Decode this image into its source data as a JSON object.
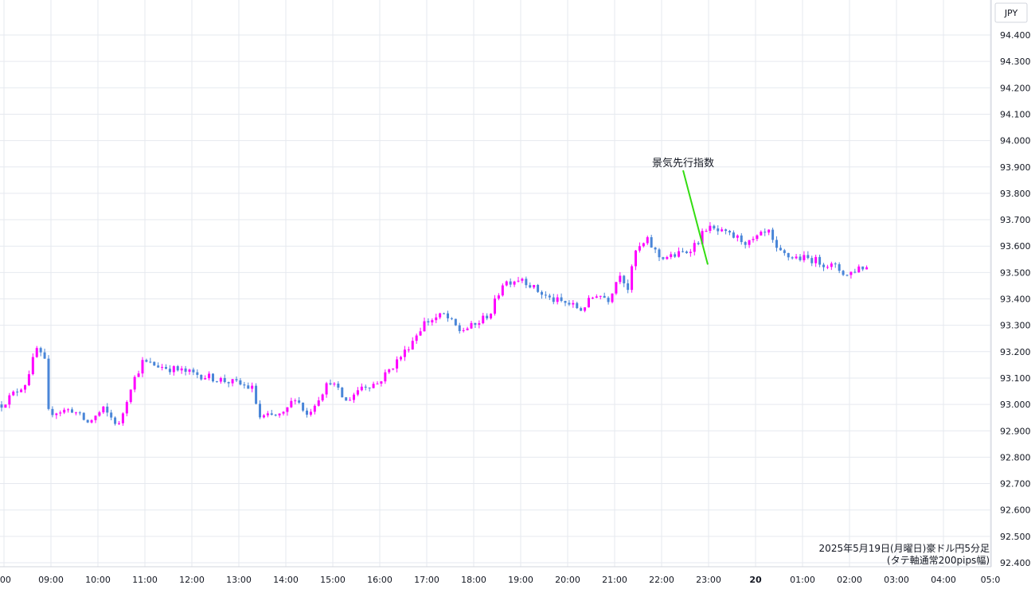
{
  "chart_data": {
    "type": "candlestick",
    "interval": "5分足",
    "currency": "JPY",
    "ylim": [
      92.4,
      94.5
    ],
    "y_ticks": [
      "94.400",
      "94.300",
      "94.200",
      "94.100",
      "94.000",
      "93.900",
      "93.800",
      "93.700",
      "93.600",
      "93.500",
      "93.400",
      "93.300",
      "93.200",
      "93.100",
      "93.000",
      "92.900",
      "92.800",
      "92.700",
      "92.600",
      "92.500",
      "92.400"
    ],
    "x_ticks": [
      {
        "label": ":00",
        "bold": false
      },
      {
        "label": "09:00",
        "bold": false
      },
      {
        "label": "10:00",
        "bold": false
      },
      {
        "label": "11:00",
        "bold": false
      },
      {
        "label": "12:00",
        "bold": false
      },
      {
        "label": "13:00",
        "bold": false
      },
      {
        "label": "14:00",
        "bold": false
      },
      {
        "label": "15:00",
        "bold": false
      },
      {
        "label": "16:00",
        "bold": false
      },
      {
        "label": "17:00",
        "bold": false
      },
      {
        "label": "18:00",
        "bold": false
      },
      {
        "label": "19:00",
        "bold": false
      },
      {
        "label": "20:00",
        "bold": false
      },
      {
        "label": "21:00",
        "bold": false
      },
      {
        "label": "22:00",
        "bold": false
      },
      {
        "label": "23:00",
        "bold": false
      },
      {
        "label": "20",
        "bold": true
      },
      {
        "label": "01:00",
        "bold": false
      },
      {
        "label": "02:00",
        "bold": false
      },
      {
        "label": "03:00",
        "bold": false
      },
      {
        "label": "04:00",
        "bold": false
      },
      {
        "label": "05:0",
        "bold": false
      }
    ],
    "up_color": "#ff00ff",
    "down_color": "#4a86d8",
    "annotation": {
      "text": "景気先行指数",
      "line_color": "#33dd11",
      "price": 93.53
    },
    "caption_lines": [
      "2025年5月19日(月曜日)豪ドル円5分足",
      "(タテ軸通常200pips幅)"
    ],
    "waypoints": [
      [
        0,
        93.0
      ],
      [
        6,
        93.08
      ],
      [
        9,
        93.21
      ],
      [
        11,
        93.16
      ],
      [
        12,
        92.97
      ],
      [
        18,
        92.98
      ],
      [
        22,
        92.93
      ],
      [
        26,
        92.98
      ],
      [
        30,
        92.92
      ],
      [
        31,
        92.97
      ],
      [
        33,
        93.07
      ],
      [
        36,
        93.16
      ],
      [
        42,
        93.14
      ],
      [
        48,
        93.12
      ],
      [
        54,
        93.1
      ],
      [
        60,
        93.08
      ],
      [
        64,
        93.06
      ],
      [
        66,
        92.95
      ],
      [
        72,
        92.96
      ],
      [
        75,
        93.03
      ],
      [
        78,
        92.96
      ],
      [
        82,
        93.05
      ],
      [
        84,
        93.09
      ],
      [
        88,
        93.01
      ],
      [
        92,
        93.07
      ],
      [
        96,
        93.08
      ],
      [
        99,
        93.13
      ],
      [
        103,
        93.2
      ],
      [
        108,
        93.31
      ],
      [
        113,
        93.34
      ],
      [
        117,
        93.28
      ],
      [
        121,
        93.3
      ],
      [
        125,
        93.35
      ],
      [
        128,
        93.46
      ],
      [
        133,
        93.48
      ],
      [
        136,
        93.44
      ],
      [
        140,
        93.4
      ],
      [
        145,
        93.38
      ],
      [
        148,
        93.36
      ],
      [
        152,
        93.42
      ],
      [
        155,
        93.4
      ],
      [
        158,
        93.5
      ],
      [
        160,
        93.44
      ],
      [
        162,
        93.58
      ],
      [
        165,
        93.62
      ],
      [
        168,
        93.56
      ],
      [
        171,
        93.56
      ],
      [
        175,
        93.58
      ],
      [
        178,
        93.62
      ],
      [
        180,
        93.67
      ],
      [
        184,
        93.65
      ],
      [
        188,
        93.63
      ],
      [
        191,
        93.61
      ],
      [
        194,
        93.64
      ],
      [
        196,
        93.65
      ],
      [
        198,
        93.58
      ],
      [
        201,
        93.56
      ],
      [
        207,
        93.55
      ],
      [
        213,
        93.52
      ],
      [
        216,
        93.49
      ],
      [
        219,
        93.52
      ],
      [
        221,
        93.52
      ]
    ]
  }
}
